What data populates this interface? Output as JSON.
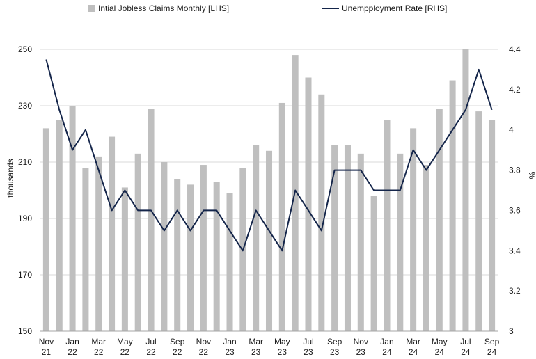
{
  "chart_data": {
    "type": "bar+line",
    "title": "",
    "x": [
      "Nov 21",
      "Dec 21",
      "Jan 22",
      "Feb 22",
      "Mar 22",
      "Apr 22",
      "May 22",
      "Jun 22",
      "Jul 22",
      "Aug 22",
      "Sep 22",
      "Oct 22",
      "Nov 22",
      "Dec 22",
      "Jan 23",
      "Feb 23",
      "Mar 23",
      "Apr 23",
      "May 23",
      "Jun 23",
      "Jul 23",
      "Aug 23",
      "Sep 23",
      "Oct 23",
      "Nov 23",
      "Dec 23",
      "Jan 24",
      "Feb 24",
      "Mar 24",
      "Apr 24",
      "May 24",
      "Jun 24",
      "Jul 24",
      "Aug 24",
      "Sep 24"
    ],
    "x_tick_labels": [
      {
        "index": 0,
        "line1": "Nov",
        "line2": "21"
      },
      {
        "index": 2,
        "line1": "Jan",
        "line2": "22"
      },
      {
        "index": 4,
        "line1": "Mar",
        "line2": "22"
      },
      {
        "index": 6,
        "line1": "May",
        "line2": "22"
      },
      {
        "index": 8,
        "line1": "Jul",
        "line2": "22"
      },
      {
        "index": 10,
        "line1": "Sep",
        "line2": "22"
      },
      {
        "index": 12,
        "line1": "Nov",
        "line2": "22"
      },
      {
        "index": 14,
        "line1": "Jan",
        "line2": "23"
      },
      {
        "index": 16,
        "line1": "Mar",
        "line2": "23"
      },
      {
        "index": 18,
        "line1": "May",
        "line2": "23"
      },
      {
        "index": 20,
        "line1": "Jul",
        "line2": "23"
      },
      {
        "index": 22,
        "line1": "Sep",
        "line2": "23"
      },
      {
        "index": 24,
        "line1": "Nov",
        "line2": "23"
      },
      {
        "index": 26,
        "line1": "Jan",
        "line2": "24"
      },
      {
        "index": 28,
        "line1": "Mar",
        "line2": "24"
      },
      {
        "index": 30,
        "line1": "May",
        "line2": "24"
      },
      {
        "index": 32,
        "line1": "Jul",
        "line2": "24"
      },
      {
        "index": 34,
        "line1": "Sep",
        "line2": "24"
      }
    ],
    "series": [
      {
        "name": "Intial Jobless Claims Monthly [LHS]",
        "kind": "bar",
        "axis": "left",
        "color": "#bfbfbf",
        "values": [
          222,
          225,
          230,
          208,
          212,
          219,
          201,
          213,
          229,
          210,
          204,
          202,
          209,
          203,
          199,
          208,
          216,
          214,
          231,
          248,
          240,
          234,
          216,
          216,
          213,
          198,
          225,
          213,
          222,
          209,
          229,
          239,
          250,
          228,
          225
        ]
      },
      {
        "name": "Unempployment Rate [RHS]",
        "kind": "line",
        "axis": "right",
        "color": "#14254a",
        "values": [
          4.35,
          4.1,
          3.9,
          4.0,
          3.8,
          3.6,
          3.7,
          3.6,
          3.6,
          3.5,
          3.6,
          3.5,
          3.6,
          3.6,
          3.5,
          3.4,
          3.6,
          3.5,
          3.4,
          3.7,
          3.6,
          3.5,
          3.8,
          3.8,
          3.8,
          3.7,
          3.7,
          3.7,
          3.9,
          3.8,
          3.9,
          4.0,
          4.1,
          4.3,
          4.1
        ]
      }
    ],
    "y_left": {
      "label": "thousands",
      "min": 150,
      "max": 250,
      "ticks": [
        "150",
        "170",
        "190",
        "210",
        "230",
        "250"
      ]
    },
    "y_right": {
      "label": "%",
      "min": 3,
      "max": 4.4,
      "ticks": [
        "3",
        "3.2",
        "3.4",
        "3.6",
        "3.8",
        "4",
        "4.2",
        "4.4"
      ]
    },
    "grid": true,
    "legend_position": "top"
  }
}
